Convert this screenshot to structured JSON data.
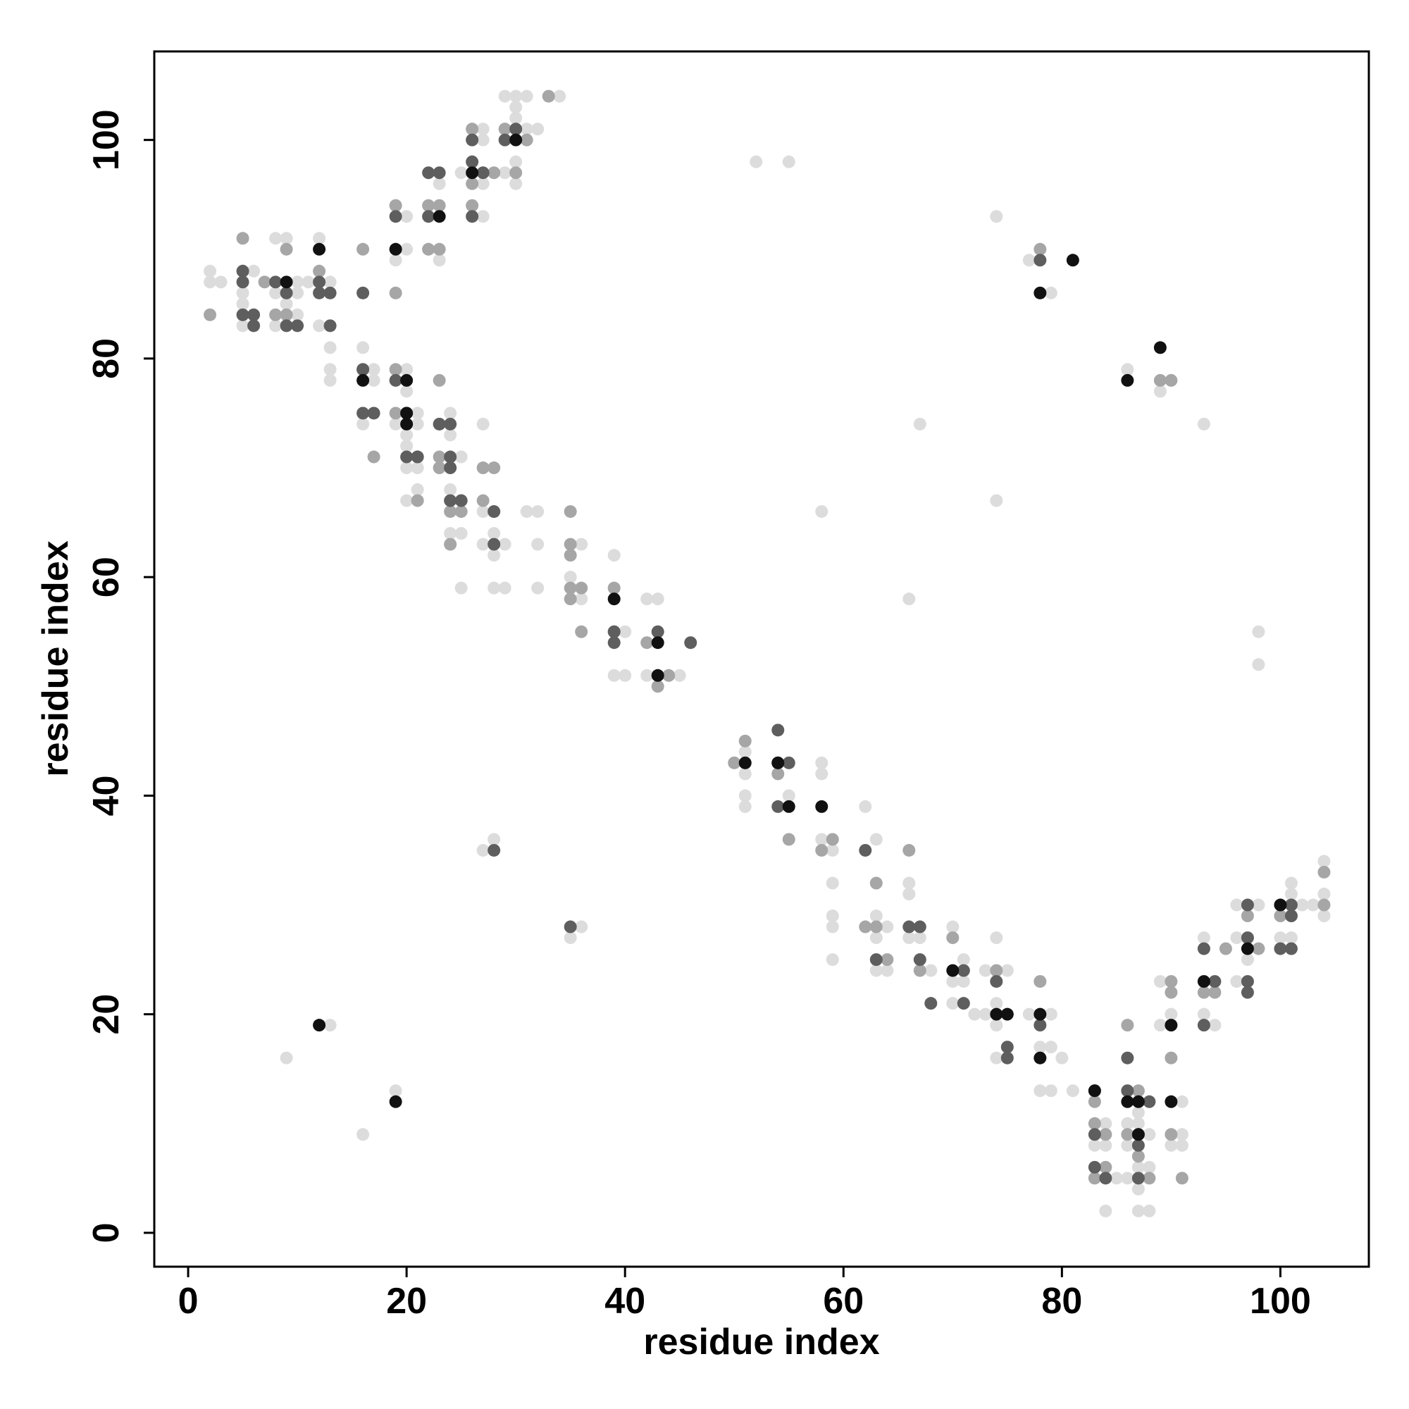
{
  "chart_data": {
    "type": "scatter",
    "xlabel": "residue index",
    "ylabel": "residue index",
    "xlim": [
      -3.1,
      108.1
    ],
    "ylim": [
      -3.1,
      108.1
    ],
    "xticks": [
      0,
      20,
      40,
      60,
      80,
      100
    ],
    "yticks": [
      0,
      20,
      40,
      60,
      80,
      100
    ],
    "series": [
      {
        "color": "#dcdcdc",
        "x": [
          2,
          2,
          3,
          5,
          5,
          6,
          8,
          9,
          8,
          9,
          10,
          10,
          10,
          11,
          12,
          13,
          12,
          5,
          8,
          19,
          20,
          20,
          22,
          23,
          23,
          27,
          27,
          27,
          27,
          25,
          29,
          29,
          30,
          30,
          30,
          30,
          30,
          31,
          31,
          32,
          34,
          19,
          13,
          13,
          13,
          16,
          16,
          17,
          17,
          19,
          20,
          20,
          20,
          20,
          20,
          20,
          21,
          21,
          21,
          21,
          23,
          24,
          24,
          24,
          24,
          24,
          25,
          25,
          25,
          27,
          27,
          27,
          28,
          28,
          28,
          29,
          29,
          31,
          32,
          32,
          32,
          35,
          36,
          36,
          39,
          39,
          39,
          40,
          42,
          43,
          42,
          44,
          45,
          40,
          51,
          51,
          51,
          51,
          55,
          58,
          58,
          58,
          59,
          59,
          59,
          59,
          59,
          62,
          63,
          63,
          63,
          63,
          64,
          64,
          66,
          66,
          66,
          67,
          68,
          70,
          70,
          70,
          71,
          71,
          72,
          73,
          73,
          74,
          74,
          74,
          74,
          75,
          77,
          78,
          78,
          79,
          79,
          79,
          80,
          81,
          83,
          84,
          84,
          85,
          84,
          86,
          86,
          86,
          87,
          87,
          87,
          87,
          87,
          88,
          88,
          88,
          89,
          89,
          90,
          90,
          91,
          91,
          91,
          93,
          93,
          94,
          96,
          96,
          96,
          97,
          98,
          100,
          101,
          101,
          101,
          102,
          103,
          104,
          104,
          104,
          9,
          16,
          19,
          13,
          27,
          28,
          35,
          36,
          52,
          55,
          58,
          66,
          67,
          74,
          74,
          77,
          79,
          86,
          89,
          93,
          98,
          98
        ],
        "values": [
          88,
          87,
          87,
          86,
          85,
          88,
          91,
          91,
          86,
          85,
          87,
          86,
          84,
          87,
          91,
          87,
          83,
          83,
          83,
          89,
          93,
          90,
          90,
          89,
          96,
          96,
          93,
          100,
          101,
          97,
          97,
          104,
          104,
          103,
          102,
          98,
          96,
          104,
          101,
          101,
          104,
          94,
          81,
          79,
          78,
          81,
          74,
          79,
          78,
          74,
          79,
          77,
          73,
          72,
          70,
          67,
          75,
          74,
          70,
          68,
          70,
          73,
          75,
          68,
          64,
          63,
          71,
          64,
          59,
          74,
          66,
          63,
          64,
          62,
          59,
          59,
          63,
          66,
          66,
          63,
          59,
          60,
          63,
          58,
          62,
          59,
          51,
          51,
          58,
          58,
          51,
          51,
          51,
          55,
          44,
          42,
          40,
          39,
          40,
          43,
          42,
          36,
          35,
          32,
          29,
          28,
          25,
          39,
          36,
          29,
          27,
          24,
          28,
          24,
          32,
          31,
          27,
          27,
          24,
          28,
          23,
          21,
          25,
          23,
          20,
          20,
          24,
          27,
          21,
          19,
          16,
          24,
          20,
          17,
          13,
          20,
          17,
          13,
          16,
          13,
          8,
          10,
          8,
          5,
          2,
          10,
          8,
          5,
          11,
          10,
          6,
          4,
          2,
          2,
          9,
          6,
          23,
          19,
          20,
          8,
          12,
          9,
          8,
          20,
          27,
          19,
          30,
          23,
          27,
          25,
          30,
          27,
          32,
          31,
          27,
          30,
          30,
          34,
          31,
          29,
          16,
          9,
          13,
          19,
          35,
          36,
          27,
          28,
          98,
          98,
          66,
          58,
          74,
          67,
          93,
          89,
          86,
          79,
          77,
          74,
          55,
          52
        ]
      },
      {
        "color": "#a6a6a6",
        "x": [
          2,
          5,
          9,
          16,
          8,
          9,
          12,
          7,
          19,
          22,
          22,
          23,
          23,
          26,
          26,
          26,
          28,
          29,
          30,
          31,
          33,
          19,
          16,
          17,
          19,
          19,
          21,
          21,
          23,
          23,
          23,
          23,
          24,
          24,
          25,
          25,
          27,
          27,
          28,
          28,
          35,
          35,
          35,
          35,
          35,
          36,
          36,
          39,
          39,
          42,
          43,
          44,
          43,
          50,
          51,
          54,
          55,
          58,
          59,
          62,
          63,
          63,
          64,
          66,
          67,
          70,
          74,
          78,
          83,
          83,
          83,
          84,
          84,
          86,
          86,
          87,
          87,
          88,
          90,
          90,
          90,
          90,
          91,
          93,
          94,
          95,
          97,
          98,
          100,
          101,
          104,
          104,
          78,
          89,
          90
        ],
        "values": [
          84,
          91,
          90,
          90,
          84,
          84,
          88,
          87,
          86,
          90,
          94,
          90,
          94,
          94,
          96,
          101,
          97,
          101,
          97,
          100,
          104,
          94,
          79,
          71,
          75,
          79,
          71,
          67,
          78,
          74,
          71,
          70,
          66,
          63,
          66,
          67,
          70,
          67,
          70,
          66,
          66,
          63,
          62,
          59,
          58,
          59,
          55,
          59,
          55,
          54,
          51,
          51,
          50,
          43,
          45,
          42,
          36,
          35,
          36,
          28,
          32,
          28,
          25,
          35,
          24,
          27,
          24,
          23,
          12,
          10,
          5,
          9,
          6,
          19,
          9,
          13,
          7,
          5,
          23,
          22,
          16,
          9,
          5,
          22,
          22,
          26,
          29,
          26,
          29,
          29,
          33,
          30,
          90,
          78,
          78
        ]
      },
      {
        "color": "#5e5e5e",
        "x": [
          5,
          5,
          5,
          6,
          6,
          9,
          9,
          10,
          12,
          13,
          13,
          16,
          8,
          12,
          19,
          22,
          22,
          23,
          26,
          26,
          26,
          27,
          29,
          30,
          16,
          16,
          17,
          19,
          20,
          20,
          21,
          23,
          24,
          24,
          24,
          24,
          25,
          28,
          28,
          39,
          39,
          43,
          46,
          54,
          54,
          55,
          62,
          63,
          66,
          67,
          67,
          68,
          71,
          71,
          74,
          75,
          75,
          78,
          83,
          83,
          83,
          84,
          86,
          86,
          87,
          87,
          87,
          88,
          93,
          93,
          94,
          97,
          97,
          97,
          97,
          100,
          101,
          101,
          101,
          54,
          35,
          28,
          78
        ],
        "values": [
          88,
          87,
          84,
          84,
          83,
          86,
          83,
          83,
          86,
          86,
          83,
          86,
          87,
          87,
          93,
          97,
          93,
          97,
          100,
          98,
          93,
          97,
          100,
          101,
          79,
          75,
          75,
          78,
          75,
          71,
          71,
          74,
          74,
          71,
          70,
          67,
          67,
          66,
          63,
          55,
          54,
          55,
          54,
          46,
          39,
          43,
          35,
          25,
          28,
          28,
          25,
          21,
          24,
          21,
          23,
          17,
          16,
          19,
          13,
          9,
          6,
          5,
          13,
          16,
          9,
          8,
          5,
          12,
          26,
          19,
          23,
          30,
          27,
          23,
          22,
          26,
          30,
          29,
          26,
          43,
          28,
          35,
          89
        ]
      },
      {
        "color": "#111111",
        "x": [
          9,
          12,
          19,
          23,
          26,
          30,
          16,
          20,
          20,
          20,
          39,
          43,
          43,
          51,
          54,
          55,
          58,
          70,
          74,
          75,
          78,
          78,
          83,
          86,
          87,
          87,
          90,
          90,
          93,
          97,
          100,
          19,
          12,
          78,
          81,
          89,
          86
        ],
        "values": [
          87,
          90,
          90,
          93,
          97,
          100,
          78,
          78,
          75,
          74,
          58,
          54,
          51,
          43,
          43,
          39,
          39,
          24,
          20,
          20,
          20,
          16,
          13,
          12,
          12,
          9,
          19,
          12,
          23,
          26,
          30,
          12,
          19,
          86,
          89,
          81,
          78
        ]
      }
    ]
  }
}
